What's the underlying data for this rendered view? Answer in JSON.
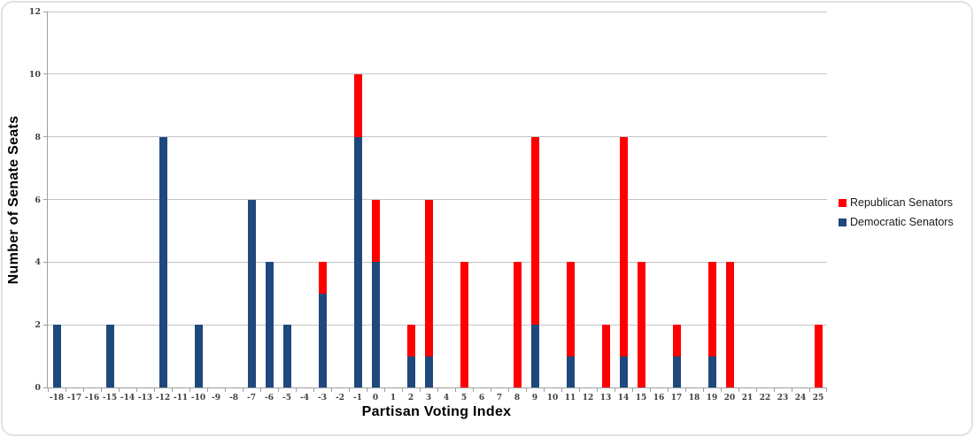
{
  "chart_data": {
    "type": "bar",
    "stacked": true,
    "xlabel": "Partisan Voting Index",
    "ylabel": "Number of Senate Seats",
    "ylim": [
      0,
      12
    ],
    "ytick_step": 2,
    "grid": true,
    "legend_position": "right",
    "categories": [
      -18,
      -17,
      -16,
      -15,
      -14,
      -13,
      -12,
      -11,
      -10,
      -9,
      -8,
      -7,
      -6,
      -5,
      -4,
      -3,
      -2,
      -1,
      0,
      1,
      2,
      3,
      4,
      5,
      6,
      7,
      8,
      9,
      10,
      11,
      12,
      13,
      14,
      15,
      16,
      17,
      18,
      19,
      20,
      21,
      22,
      23,
      24,
      25
    ],
    "series": [
      {
        "name": "Republican Senators",
        "color": "#FF0000",
        "values": [
          0,
          0,
          0,
          0,
          0,
          0,
          0,
          0,
          0,
          0,
          0,
          0,
          0,
          0,
          0,
          1,
          0,
          2,
          2,
          0,
          1,
          5,
          0,
          4,
          0,
          0,
          4,
          6,
          0,
          3,
          0,
          2,
          7,
          4,
          0,
          1,
          0,
          3,
          4,
          0,
          0,
          0,
          0,
          2
        ]
      },
      {
        "name": "Democratic Senators",
        "color": "#1F497D",
        "values": [
          2,
          0,
          0,
          2,
          0,
          0,
          8,
          0,
          2,
          0,
          0,
          6,
          4,
          2,
          0,
          3,
          0,
          8,
          4,
          0,
          1,
          1,
          0,
          0,
          0,
          0,
          0,
          2,
          0,
          1,
          0,
          0,
          1,
          0,
          0,
          1,
          0,
          1,
          0,
          0,
          0,
          0,
          0,
          0
        ]
      }
    ],
    "stack_bottom_to_top": [
      "Democratic Senators",
      "Republican Senators"
    ]
  },
  "colors": {
    "gridline": "#C4C4C4",
    "axis": "#9E9E9E",
    "tick_label_text": "#3F3F3F",
    "frame_border": "#DDE3E8"
  }
}
